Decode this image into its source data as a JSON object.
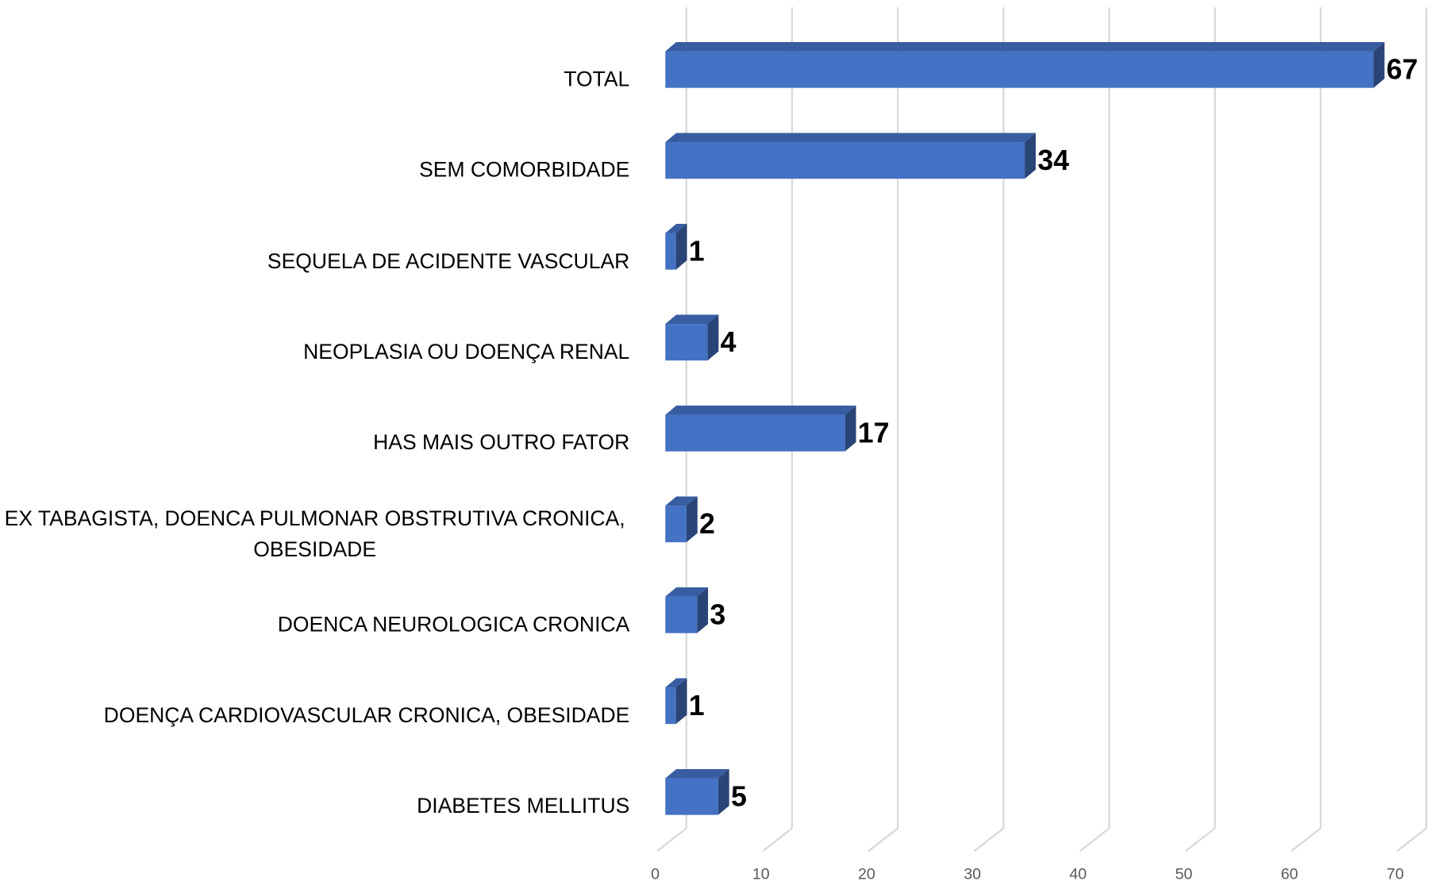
{
  "chart_data": {
    "type": "bar",
    "orientation": "horizontal",
    "three_d": true,
    "categories": [
      "TOTAL",
      "SEM COMORBIDADE",
      "SEQUELA DE ACIDENTE VASCULAR",
      "NEOPLASIA OU DOENÇA RENAL",
      "HAS MAIS OUTRO FATOR",
      "EX TABAGISTA, DOENCA PULMONAR OBSTRUTIVA CRONICA, OBESIDADE",
      "DOENCA NEUROLOGICA CRONICA",
      "DOENÇA CARDIOVASCULAR CRONICA, OBESIDADE",
      "DIABETES MELLITUS"
    ],
    "values": [
      67,
      34,
      1,
      4,
      17,
      2,
      3,
      1,
      5
    ],
    "color": "#4472c4",
    "xlim": [
      0,
      70
    ],
    "xticks": [
      0,
      10,
      20,
      30,
      40,
      50,
      60,
      70
    ],
    "grid": true
  }
}
